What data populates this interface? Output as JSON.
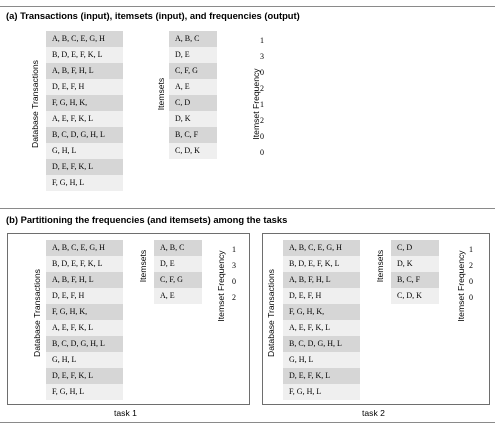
{
  "section_a": {
    "title": "(a) Transactions (input), itemsets (input), and frequencies (output)",
    "transactions_label": "Database Transactions",
    "itemsets_label": "Itemsets",
    "frequency_label": "Itemset Frequency",
    "transactions": [
      "A, B, C, E, G, H",
      "B, D, E, F, K, L",
      "A, B, F, H, L",
      "D, E, F, H",
      "F, G, H, K,",
      "A, E, F, K, L",
      "B, C, D, G, H, L",
      "G, H, L",
      "D, E, F, K, L",
      "F, G, H, L"
    ],
    "itemsets": [
      "A, B, C",
      "D, E",
      "C, F, G",
      "A, E",
      "C, D",
      "D, K",
      "B, C, F",
      "C, D, K"
    ],
    "frequencies": [
      "1",
      "3",
      "0",
      "2",
      "1",
      "2",
      "0",
      "0"
    ]
  },
  "section_b": {
    "title": "(b) Partitioning the frequencies (and itemsets) among the tasks",
    "tasks": [
      {
        "label": "task 1",
        "transactions_label": "Database Transactions",
        "itemsets_label": "Itemsets",
        "frequency_label": "Itemset Frequency",
        "transactions": [
          "A, B, C, E, G, H",
          "B, D, E, F, K, L",
          "A, B, F, H, L",
          "D, E, F, H",
          "F, G, H, K,",
          "A, E, F, K, L",
          "B, C, D, G, H, L",
          "G, H, L",
          "D, E, F, K, L",
          "F, G, H, L"
        ],
        "itemsets": [
          "A, B, C",
          "D, E",
          "C, F, G",
          "A, E"
        ],
        "frequencies": [
          "1",
          "3",
          "0",
          "2"
        ]
      },
      {
        "label": "task 2",
        "transactions_label": "Database Transactions",
        "itemsets_label": "Itemsets",
        "frequency_label": "Itemset Frequency",
        "transactions": [
          "A, B, C, E, G, H",
          "B, D, E, F, K, L",
          "A, B, F, H, L",
          "D, E, F, H",
          "F, G, H, K,",
          "A, E, F, K, L",
          "B, C, D, G, H, L",
          "G, H, L",
          "D, E, F, K, L",
          "F, G, H, L"
        ],
        "itemsets": [
          "C, D",
          "D, K",
          "B, C, F",
          "C, D, K"
        ],
        "frequencies": [
          "1",
          "2",
          "0",
          "0"
        ]
      }
    ]
  }
}
